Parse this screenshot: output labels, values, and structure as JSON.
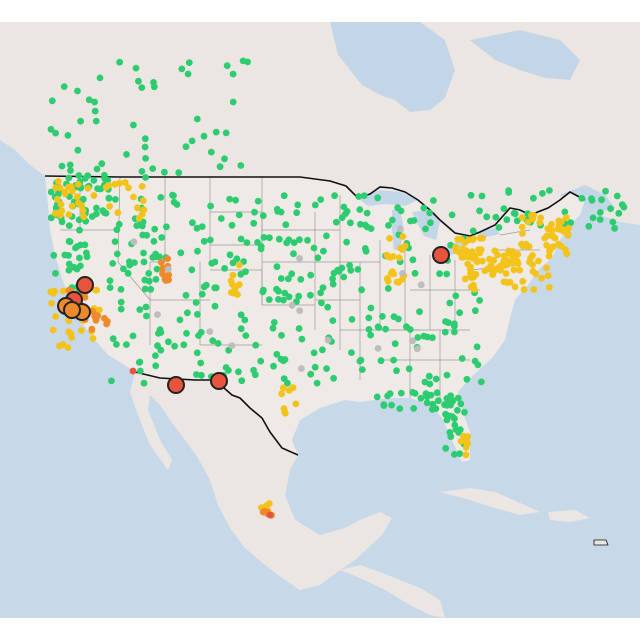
{
  "map": {
    "style": "light basemap, air quality monitoring stations",
    "colors": {
      "ocean": "#c7d8e8",
      "land": "#efeae6",
      "land_other": "#ece6e3",
      "border": "#111111",
      "state_line": "#9a9a9a",
      "water": "#c3d6e8",
      "green": "#2ecc71",
      "yellow": "#f3c31b",
      "orange": "#ef8a2a",
      "red": "#e8533d",
      "gray": "#bdbdbd",
      "marker_stroke": "#222222"
    },
    "legend_levels": [
      "green",
      "yellow",
      "orange",
      "red",
      "gray"
    ]
  }
}
